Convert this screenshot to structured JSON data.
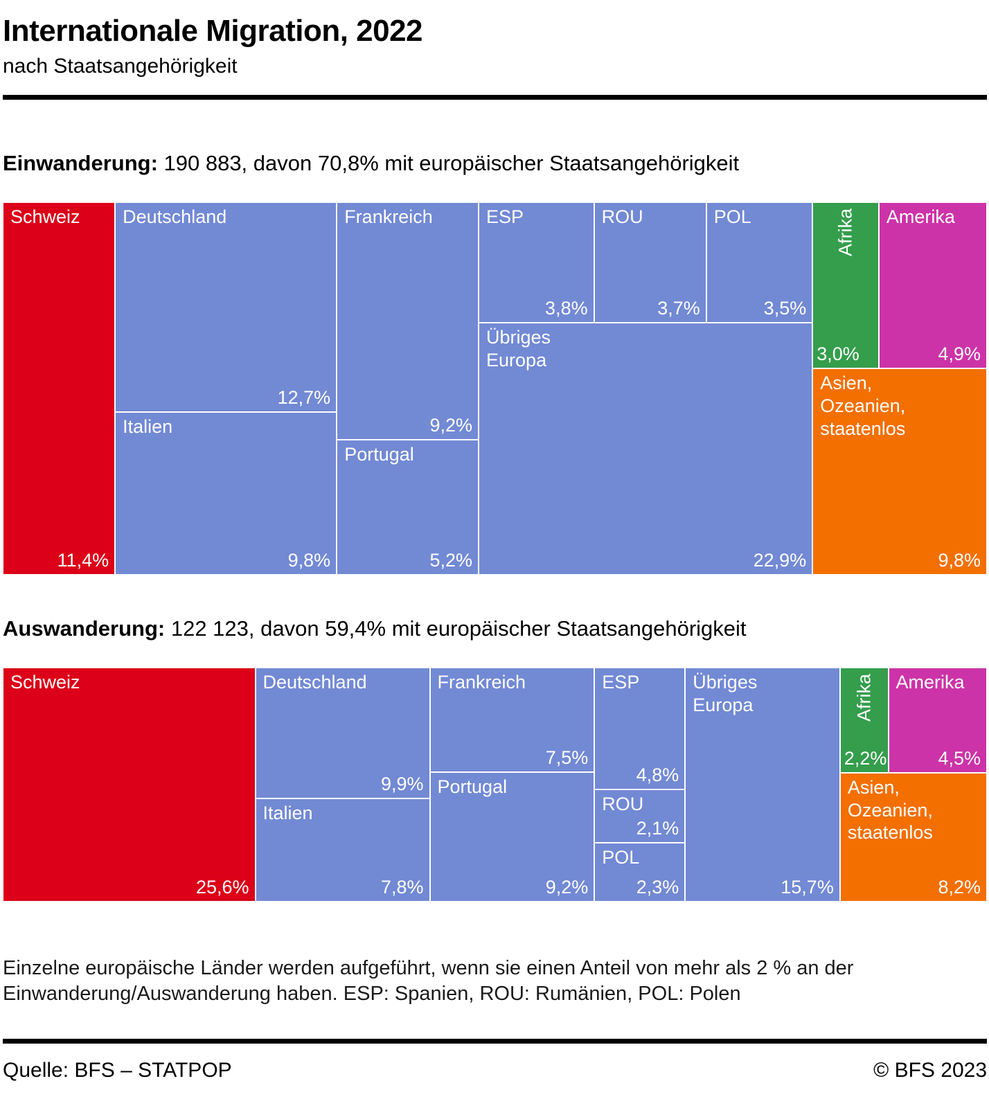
{
  "title": "Internationale Migration, 2022",
  "subtitle": "nach Staatsangehörigkeit",
  "palette": {
    "switzerland": "#DC0018",
    "europe": "#7289D4",
    "africa": "#349E4C",
    "america": "#CC33A8",
    "asia_oceania": "#F36F00"
  },
  "footnote": {
    "line1": "Einzelne europäische Länder werden aufgeführt, wenn sie einen Anteil von mehr als 2 % an der",
    "line2": "Einwanderung/Auswanderung haben. ESP: Spanien, ROU: Rumänien, POL: Polen"
  },
  "footer": {
    "source": "Quelle: BFS – STATPOP",
    "copyright": "© BFS 2023"
  },
  "chart_data": [
    {
      "type": "treemap",
      "id": "einwanderung",
      "heading_bold": "Einwanderung:",
      "heading_rest": " 190 883, davon 70,8% mit europäischer Staatsangehörigkeit",
      "total_label": "190 883",
      "european_share_label": "70,8%",
      "unit": "share of total immigration, %",
      "groups": [
        {
          "rows": [
            [
              {
                "id": "schweiz",
                "label": "Schweiz",
                "value": 11.4,
                "pct": "11,4%",
                "color": "switzerland"
              }
            ]
          ]
        },
        {
          "rows": [
            [
              {
                "id": "deutschland",
                "label": "Deutschland",
                "value": 12.7,
                "pct": "12,7%",
                "color": "europe"
              }
            ],
            [
              {
                "id": "italien",
                "label": "Italien",
                "value": 9.8,
                "pct": "9,8%",
                "color": "europe"
              }
            ]
          ]
        },
        {
          "rows": [
            [
              {
                "id": "frankreich",
                "label": "Frankreich",
                "value": 9.2,
                "pct": "9,2%",
                "color": "europe"
              }
            ],
            [
              {
                "id": "portugal",
                "label": "Portugal",
                "value": 5.2,
                "pct": "5,2%",
                "color": "europe"
              }
            ]
          ]
        },
        {
          "rows": [
            [
              {
                "id": "esp",
                "label": "ESP",
                "value": 3.8,
                "pct": "3,8%",
                "color": "europe"
              },
              {
                "id": "rou",
                "label": "ROU",
                "value": 3.7,
                "pct": "3,7%",
                "color": "europe"
              },
              {
                "id": "pol",
                "label": "POL",
                "value": 3.5,
                "pct": "3,5%",
                "color": "europe"
              }
            ],
            [
              {
                "id": "uebriges-europa",
                "label": "Übriges\nEuropa",
                "value": 22.9,
                "pct": "22,9%",
                "color": "europe"
              }
            ]
          ]
        },
        {
          "rows": [
            [
              {
                "id": "afrika",
                "label": "Afrika",
                "value": 3.0,
                "pct": "3,0%",
                "color": "africa",
                "vertical": true
              },
              {
                "id": "amerika",
                "label": "Amerika",
                "value": 4.9,
                "pct": "4,9%",
                "color": "america"
              }
            ],
            [
              {
                "id": "asien-ozeanien-staatenlos",
                "label": "Asien,\nOzeanien,\nstaatenlos",
                "value": 9.8,
                "pct": "9,8%",
                "color": "asia_oceania"
              }
            ]
          ]
        }
      ]
    },
    {
      "type": "treemap",
      "id": "auswanderung",
      "heading_bold": "Auswanderung:",
      "heading_rest": " 122 123, davon 59,4% mit europäischer Staatsangehörigkeit",
      "total_label": "122 123",
      "european_share_label": "59,4%",
      "unit": "share of total emigration, %",
      "groups": [
        {
          "rows": [
            [
              {
                "id": "schweiz",
                "label": "Schweiz",
                "value": 25.6,
                "pct": "25,6%",
                "color": "switzerland"
              }
            ]
          ]
        },
        {
          "rows": [
            [
              {
                "id": "deutschland",
                "label": "Deutschland",
                "value": 9.9,
                "pct": "9,9%",
                "color": "europe"
              }
            ],
            [
              {
                "id": "italien",
                "label": "Italien",
                "value": 7.8,
                "pct": "7,8%",
                "color": "europe"
              }
            ]
          ]
        },
        {
          "rows": [
            [
              {
                "id": "frankreich",
                "label": "Frankreich",
                "value": 7.5,
                "pct": "7,5%",
                "color": "europe"
              }
            ],
            [
              {
                "id": "portugal",
                "label": "Portugal",
                "value": 9.2,
                "pct": "9,2%",
                "color": "europe"
              }
            ]
          ]
        },
        {
          "rows": [
            [
              {
                "id": "esp",
                "label": "ESP",
                "value": 4.8,
                "pct": "4,8%",
                "color": "europe"
              }
            ],
            [
              {
                "id": "rou",
                "label": "ROU",
                "value": 2.1,
                "pct": "2,1%",
                "color": "europe"
              }
            ],
            [
              {
                "id": "pol",
                "label": "POL",
                "value": 2.3,
                "pct": "2,3%",
                "color": "europe"
              }
            ]
          ]
        },
        {
          "rows": [
            [
              {
                "id": "uebriges-europa",
                "label": "Übriges\nEuropa",
                "value": 15.7,
                "pct": "15,7%",
                "color": "europe"
              }
            ]
          ]
        },
        {
          "rows": [
            [
              {
                "id": "afrika",
                "label": "Afrika",
                "value": 2.2,
                "pct": "2,2%",
                "color": "africa",
                "vertical": true
              },
              {
                "id": "amerika",
                "label": "Amerika",
                "value": 4.5,
                "pct": "4,5%",
                "color": "america"
              }
            ],
            [
              {
                "id": "asien-ozeanien-staatenlos",
                "label": "Asien,\nOzeanien,\nstaatenlos",
                "value": 8.2,
                "pct": "8,2%",
                "color": "asia_oceania"
              }
            ]
          ]
        }
      ]
    }
  ]
}
